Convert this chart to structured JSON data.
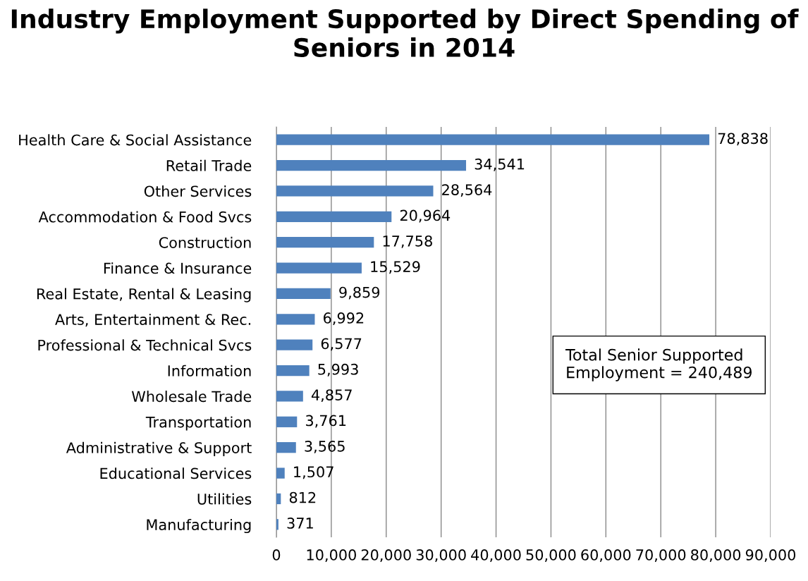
{
  "chart_data": {
    "type": "bar",
    "orientation": "horizontal",
    "title": "Industry Employment Supported by Direct Spending of Seniors in 2014",
    "categories": [
      "Health Care & Social Assistance",
      "Retail Trade",
      "Other Services",
      "Accommodation & Food Svcs",
      "Construction",
      "Finance & Insurance",
      "Real Estate, Rental & Leasing",
      "Arts, Entertainment & Rec.",
      "Professional & Technical Svcs",
      "Information",
      "Wholesale Trade",
      "Transportation",
      "Administrative & Support",
      "Educational Services",
      "Utilities",
      "Manufacturing"
    ],
    "values": [
      78838,
      34541,
      28564,
      20964,
      17758,
      15529,
      9859,
      6992,
      6577,
      5993,
      4857,
      3761,
      3565,
      1507,
      812,
      371
    ],
    "value_labels": [
      "78,838",
      "34,541",
      "28,564",
      "20,964",
      "17,758",
      "15,529",
      "9,859",
      "6,992",
      "6,577",
      "5,993",
      "4,857",
      "3,761",
      "3,565",
      "1,507",
      "812",
      "371"
    ],
    "color": "#4f81bd",
    "xlim": [
      0,
      90000
    ],
    "xticks": [
      0,
      {
        "value": 10000,
        "label": "10,000"
      },
      {
        "value": 20000,
        "label": "20,000"
      },
      {
        "value": 30000,
        "label": "30,000"
      },
      {
        "value": 40000,
        "label": "40,000"
      },
      {
        "value": 50000,
        "label": "50,000"
      },
      {
        "value": 60000,
        "label": "60,000"
      },
      {
        "value": 70000,
        "label": "70,000"
      },
      {
        "value": 80000,
        "label": "80,000"
      },
      {
        "value": 90000,
        "label": "90,000"
      }
    ],
    "grid": "x",
    "annotations": [
      "Total Senior Supported\nEmployment = 240,489"
    ]
  }
}
